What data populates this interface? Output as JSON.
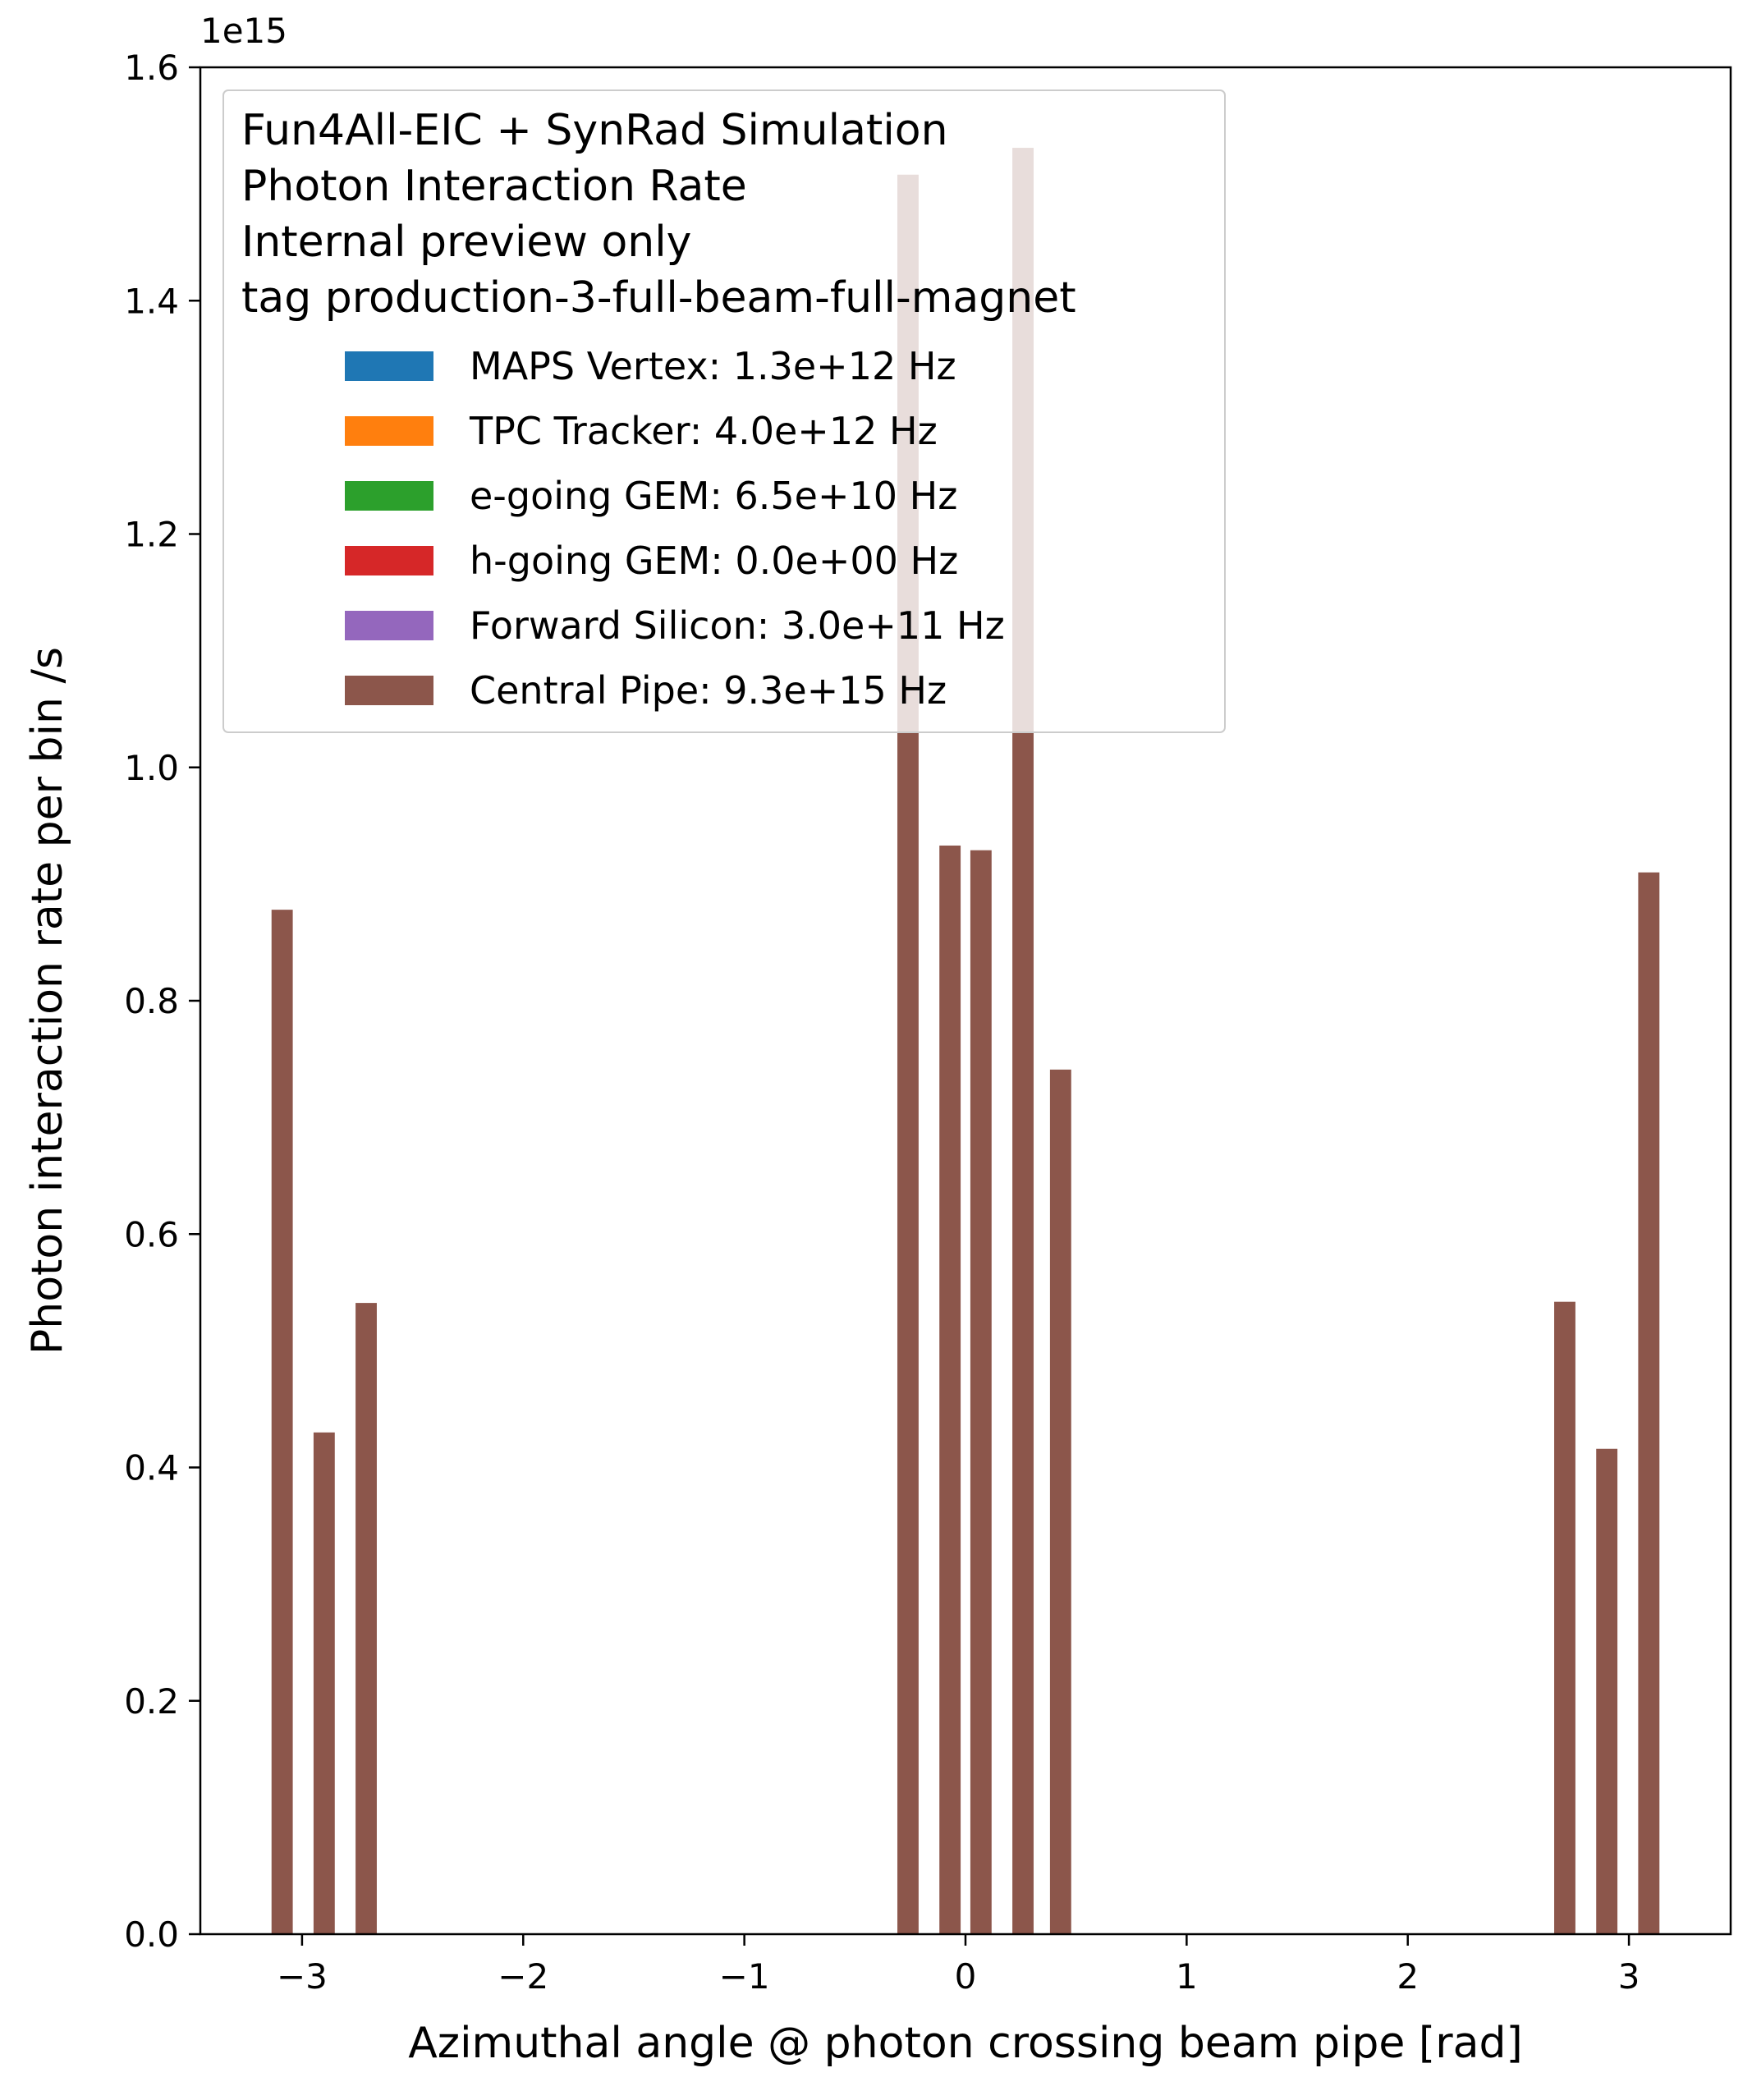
{
  "chart_data": {
    "type": "bar",
    "xlabel": "Azimuthal angle @ photon crossing beam pipe [rad]",
    "ylabel": "Photon interaction rate per bin /s",
    "y_offset_label": "1e15",
    "xlim": [
      -3.46,
      3.46
    ],
    "ylim": [
      0,
      1.6
    ],
    "y_scale_factor": 1000000000000000.0,
    "x_ticks": [
      -3,
      -2,
      -1,
      0,
      1,
      2,
      3
    ],
    "x_tick_labels": [
      "−3",
      "−2",
      "−1",
      "0",
      "1",
      "2",
      "3"
    ],
    "y_ticks": [
      0.0,
      0.2,
      0.4,
      0.6,
      0.8,
      1.0,
      1.2,
      1.4,
      1.6
    ],
    "y_tick_labels": [
      "0.0",
      "0.2",
      "0.4",
      "0.6",
      "0.8",
      "1.0",
      "1.2",
      "1.4",
      "1.6"
    ],
    "bar_width": 0.096,
    "legend": {
      "position": "upper left",
      "title_lines": [
        "Fun4All-EIC + SynRad Simulation",
        "Photon Interaction Rate",
        "Internal preview only",
        "tag production-3-full-beam-full-magnet"
      ]
    },
    "series": [
      {
        "name": "MAPS Vertex: 1.3e+12 Hz",
        "color": "#1f77b4",
        "x": [],
        "values": []
      },
      {
        "name": "TPC Tracker: 4.0e+12 Hz",
        "color": "#ff7f0e",
        "x": [],
        "values": []
      },
      {
        "name": "e-going GEM: 6.5e+10 Hz",
        "color": "#2ca02c",
        "x": [],
        "values": []
      },
      {
        "name": "h-going GEM: 0.0e+00 Hz",
        "color": "#d62728",
        "x": [],
        "values": []
      },
      {
        "name": "Forward Silicon: 3.0e+11 Hz",
        "color": "#9467bd",
        "x": [],
        "values": []
      },
      {
        "name": "Central Pipe: 9.3e+15 Hz",
        "color": "#8c564b",
        "x": [
          -3.09,
          -2.9,
          -2.71,
          -0.26,
          -0.07,
          0.07,
          0.26,
          0.43,
          2.71,
          2.9,
          3.09
        ],
        "values": [
          0.878,
          0.43,
          0.541,
          1.508,
          0.933,
          0.929,
          1.531,
          0.741,
          0.542,
          0.416,
          0.91
        ]
      }
    ]
  }
}
